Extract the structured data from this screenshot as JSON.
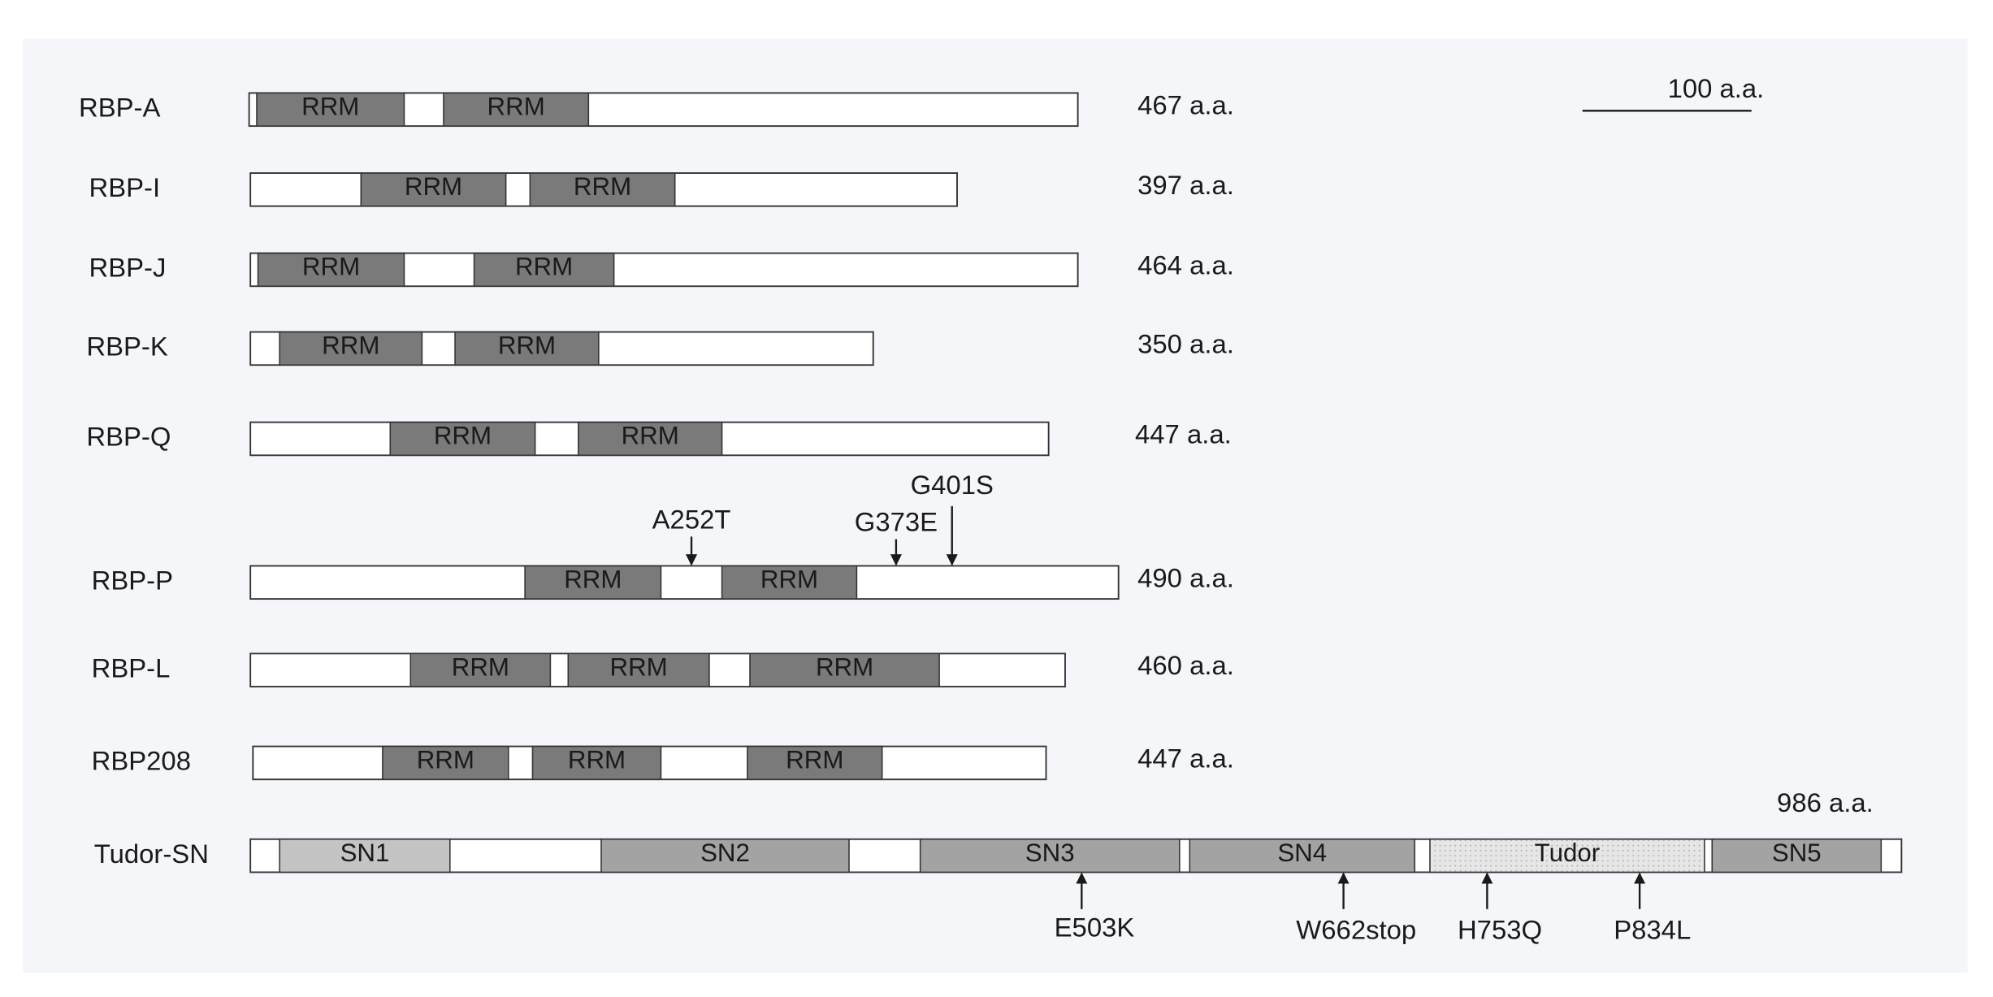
{
  "scale_bar": "100 a.a.",
  "proteins": [
    {
      "name": "RBP-A",
      "length": "467 a.a.",
      "domains": [
        "RRM",
        "RRM"
      ],
      "mutations": []
    },
    {
      "name": "RBP-I",
      "length": "397 a.a.",
      "domains": [
        "RRM",
        "RRM"
      ],
      "mutations": []
    },
    {
      "name": "RBP-J",
      "length": "464 a.a.",
      "domains": [
        "RRM",
        "RRM"
      ],
      "mutations": []
    },
    {
      "name": "RBP-K",
      "length": "350 a.a.",
      "domains": [
        "RRM",
        "RRM"
      ],
      "mutations": []
    },
    {
      "name": "RBP-Q",
      "length": "447 a.a.",
      "domains": [
        "RRM",
        "RRM"
      ],
      "mutations": []
    },
    {
      "name": "RBP-P",
      "length": "490 a.a.",
      "domains": [
        "RRM",
        "RRM"
      ],
      "mutations": [
        "A252T",
        "G373E",
        "G401S"
      ]
    },
    {
      "name": "RBP-L",
      "length": "460 a.a.",
      "domains": [
        "RRM",
        "RRM",
        "RRM"
      ],
      "mutations": []
    },
    {
      "name": "RBP208",
      "length": "447 a.a.",
      "domains": [
        "RRM",
        "RRM",
        "RRM"
      ],
      "mutations": []
    },
    {
      "name": "Tudor-SN",
      "length": "986 a.a.",
      "domains": [
        "SN1",
        "SN2",
        "SN3",
        "SN4",
        "Tudor",
        "SN5"
      ],
      "mutations": [
        "E503K",
        "W662stop",
        "H753Q",
        "P834L"
      ]
    }
  ]
}
